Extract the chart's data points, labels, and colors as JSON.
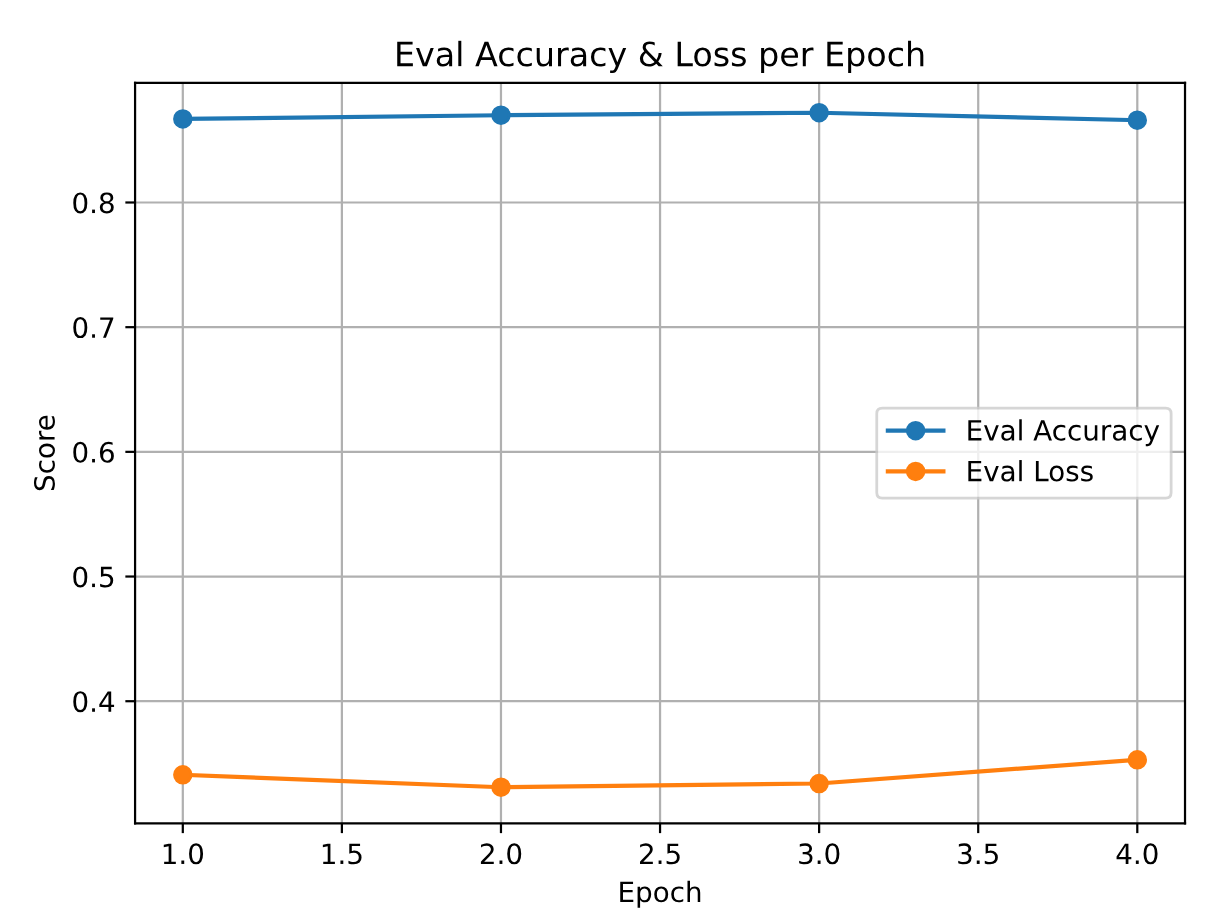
{
  "chart_data": {
    "type": "line",
    "title": "Eval Accuracy & Loss per Epoch",
    "xlabel": "Epoch",
    "ylabel": "Score",
    "x": [
      1,
      2,
      3,
      4
    ],
    "series": [
      {
        "name": "Eval Accuracy",
        "color": "#1f77b4",
        "values": [
          0.867,
          0.87,
          0.872,
          0.866
        ]
      },
      {
        "name": "Eval Loss",
        "color": "#ff7f0e",
        "values": [
          0.341,
          0.331,
          0.334,
          0.353
        ]
      }
    ],
    "xlim": [
      0.85,
      4.15
    ],
    "xticks": [
      {
        "value": 1,
        "label": "1.0"
      },
      {
        "value": 1.5,
        "label": "1.5"
      },
      {
        "value": 2,
        "label": "2.0"
      },
      {
        "value": 2.5,
        "label": "2.5"
      },
      {
        "value": 3,
        "label": "3.0"
      },
      {
        "value": 3.5,
        "label": "3.5"
      },
      {
        "value": 4,
        "label": "4.0"
      }
    ],
    "ylim": [
      0.302,
      0.896
    ],
    "yticks": [
      0.4,
      0.5,
      0.6,
      0.7,
      0.8
    ],
    "grid": true,
    "legend": "right",
    "marker": "circle",
    "line_style": "solid"
  }
}
